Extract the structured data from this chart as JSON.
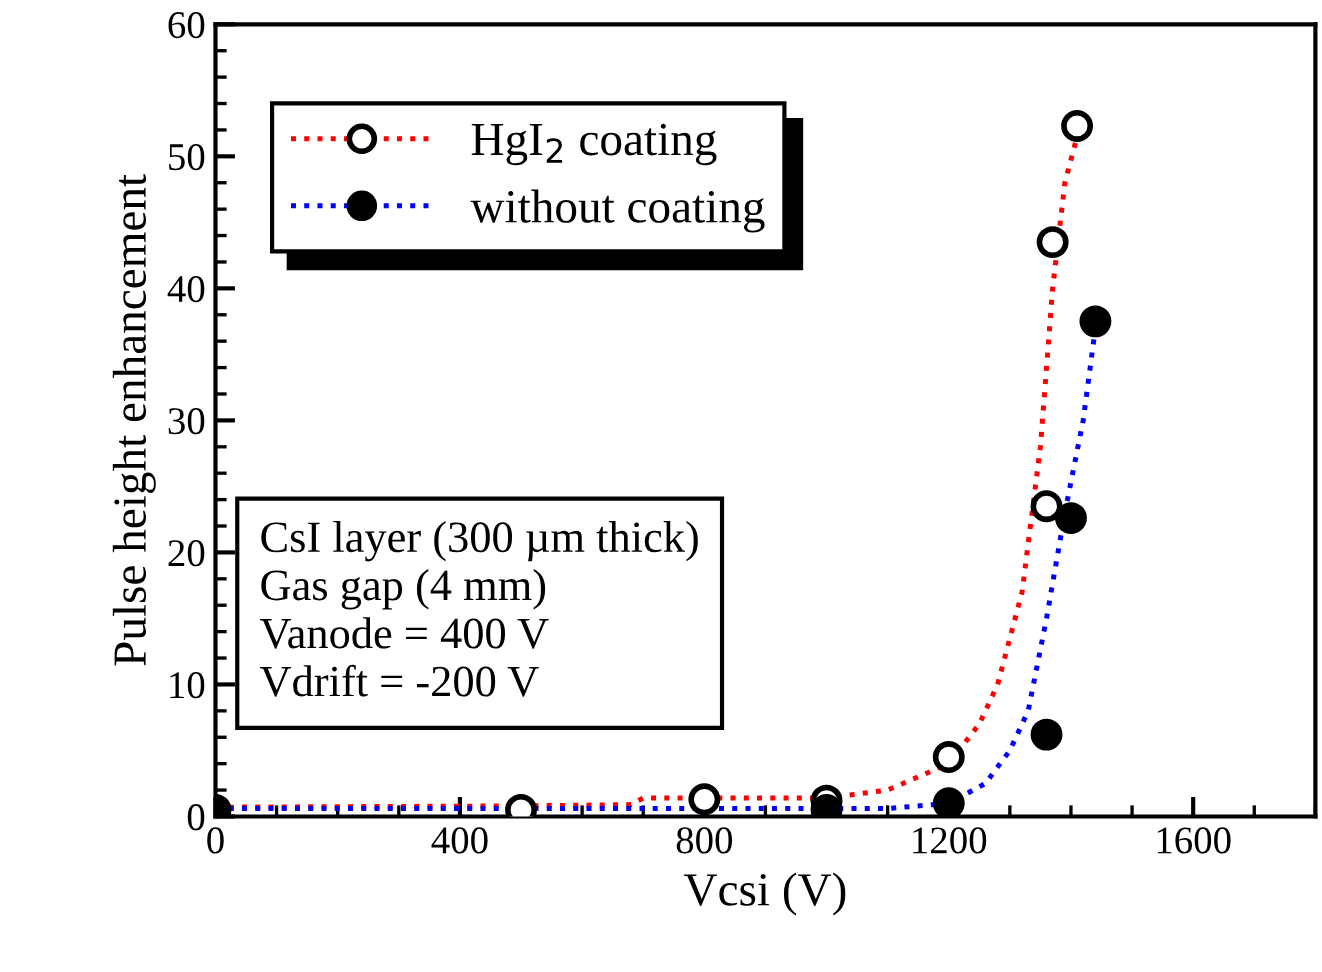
{
  "chart_data": {
    "type": "scatter",
    "xlabel": "Vcsi (V)",
    "ylabel": "Pulse height enhancement",
    "xlim": [
      0,
      1800
    ],
    "xticks": [
      0,
      400,
      800,
      1200,
      1600
    ],
    "ylim": [
      0,
      60
    ],
    "yticks": [
      0,
      10,
      20,
      30,
      40,
      50,
      60
    ],
    "grid": false,
    "legend": "top left",
    "annotations": [
      "CsI layer (300 µm thick)\nGas gap (4 mm)\nVanode = 400 V\nVdrift = -200 V"
    ],
    "series": [
      {
        "type": "line",
        "color": "#ff0000",
        "line_style": "dotted",
        "marker": "none",
        "x": [
          0,
          500,
          680,
          700,
          1000,
          1100,
          1200,
          1250,
          1280,
          1320,
          1350,
          1370,
          1390,
          1410
        ],
        "values": [
          0.7,
          0.8,
          0.9,
          1.4,
          1.4,
          2,
          4,
          7,
          10,
          17,
          28,
          40,
          48,
          51.5
        ]
      },
      {
        "name": "HgI$_{2}$ coating",
        "color": "#ffffff",
        "marker": "circle",
        "x": [
          500,
          800,
          1000,
          1200,
          1360,
          1370,
          1410
        ],
        "values": [
          0.5,
          1.3,
          1.2,
          4.5,
          23.5,
          43.5,
          52.3
        ]
      },
      {
        "type": "line",
        "color": "#0000ff",
        "line_style": "dotted",
        "marker": "none",
        "x": [
          0,
          1100,
          1200,
          1260,
          1300,
          1330,
          1360,
          1390,
          1420,
          1440
        ],
        "values": [
          0.6,
          0.6,
          1,
          2.5,
          5,
          8,
          15,
          23,
          30,
          37
        ]
      },
      {
        "name": "without coating",
        "color": "#000000",
        "marker": "circle",
        "x": [
          0,
          1000,
          1200,
          1360,
          1400,
          1440
        ],
        "values": [
          0.5,
          0.5,
          1,
          6.2,
          22.6,
          37.5
        ]
      }
    ]
  }
}
